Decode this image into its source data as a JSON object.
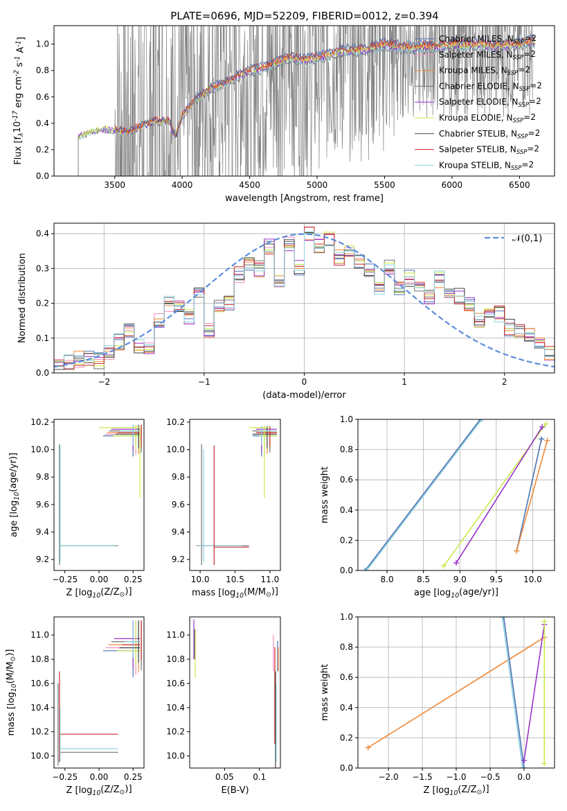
{
  "title": "PLATE=0696, MJD=52209, FIBERID=0012, z=0.394",
  "colors": {
    "Chabrier MILES": "#4c72b0",
    "Salpeter MILES": "#f08ec0",
    "Kroupa MILES": "#ee8a3a",
    "Chabrier ELODIE": "#707070",
    "Salpeter ELODIE": "#9a32c8",
    "Kroupa ELODIE": "#c8ea4a",
    "Chabrier STELIB": "#404040",
    "Salpeter STELIB": "#c8282a",
    "Kroupa STELIB": "#8ed0e0",
    "observed": "#808080",
    "normal_curve": "#5b8ddd"
  },
  "chart_data": [
    {
      "id": "spectrum",
      "type": "line",
      "xlabel": "wavelength [Angstrom, rest frame]",
      "ylabel": "Flux [f$_\\lambda$10$^{-17}$ erg cm$^{-2}$ s$^{-1}$ A$^{-1}$]",
      "xlim": [
        3050,
        6760
      ],
      "ylim": [
        0,
        1.14
      ],
      "xticks": [
        3500,
        4000,
        4500,
        5000,
        5500,
        6000,
        6500
      ],
      "yticks": [
        0.0,
        0.2,
        0.4,
        0.6,
        0.8,
        1.0
      ],
      "grid": false,
      "legend_position": "top-right",
      "legend": [
        {
          "label": "Chabrier MILES, N",
          "sub": "SSP",
          "suffix": "=2"
        },
        {
          "label": "Salpeter MILES, N",
          "sub": "SSP",
          "suffix": "=2"
        },
        {
          "label": "Kroupa MILES, N",
          "sub": "SSP",
          "suffix": "=2"
        },
        {
          "label": "Chabrier ELODIE, N",
          "sub": "SSP",
          "suffix": "=2"
        },
        {
          "label": "Salpeter ELODIE, N",
          "sub": "SSP",
          "suffix": "=2"
        },
        {
          "label": "Kroupa ELODIE, N",
          "sub": "SSP",
          "suffix": "=2"
        },
        {
          "label": "Chabrier STELIB, N",
          "sub": "SSP",
          "suffix": "=2"
        },
        {
          "label": "Salpeter STELIB, N",
          "sub": "SSP",
          "suffix": "=2"
        },
        {
          "label": "Kroupa STELIB, N",
          "sub": "SSP",
          "suffix": "=2"
        }
      ],
      "model_continuum": {
        "x": [
          3230,
          3300,
          3400,
          3500,
          3600,
          3700,
          3800,
          3900,
          3950,
          4000,
          4100,
          4200,
          4300,
          4400,
          4500,
          4600,
          4700,
          4800,
          4900,
          5000,
          5100,
          5200,
          5300,
          5400,
          5500,
          5600,
          5700,
          5800,
          5900,
          6000,
          6100,
          6200,
          6300,
          6400,
          6500,
          6600
        ],
        "y": [
          0.3,
          0.33,
          0.36,
          0.35,
          0.34,
          0.38,
          0.42,
          0.42,
          0.3,
          0.46,
          0.58,
          0.66,
          0.7,
          0.75,
          0.8,
          0.82,
          0.86,
          0.9,
          0.88,
          0.9,
          0.92,
          0.95,
          0.95,
          0.97,
          1.0,
          0.98,
          0.97,
          0.98,
          0.98,
          1.0,
          0.99,
          1.0,
          0.98,
          0.99,
          1.0,
          1.02
        ]
      },
      "noisy_range": [
        3500,
        6600
      ]
    },
    {
      "id": "residual-hist",
      "type": "line",
      "xlabel": "(data-model)/error",
      "ylabel": "Normed distribution",
      "xlim": [
        -2.5,
        2.5
      ],
      "ylim": [
        0,
        0.43
      ],
      "xticks": [
        -2,
        -1,
        0,
        1,
        2
      ],
      "yticks": [
        0.0,
        0.1,
        0.2,
        0.3,
        0.4
      ],
      "grid": true,
      "legend_position": "top-right",
      "legend": [
        "$\\mathcal{N}(0,1)$"
      ],
      "bin_edges": [
        -2.5,
        -2.4,
        -2.3,
        -2.2,
        -2.1,
        -2.0,
        -1.9,
        -1.8,
        -1.7,
        -1.6,
        -1.5,
        -1.4,
        -1.3,
        -1.2,
        -1.1,
        -1.0,
        -0.9,
        -0.8,
        -0.7,
        -0.6,
        -0.5,
        -0.4,
        -0.3,
        -0.2,
        -0.1,
        0.0,
        0.1,
        0.2,
        0.3,
        0.4,
        0.5,
        0.6,
        0.7,
        0.8,
        0.9,
        1.0,
        1.1,
        1.2,
        1.3,
        1.4,
        1.5,
        1.6,
        1.7,
        1.8,
        1.9,
        2.0,
        2.1,
        2.2,
        2.3,
        2.4,
        2.5
      ],
      "hist_base": [
        0.025,
        0.03,
        0.04,
        0.04,
        0.035,
        0.06,
        0.09,
        0.12,
        0.08,
        0.07,
        0.15,
        0.2,
        0.2,
        0.16,
        0.22,
        0.12,
        0.2,
        0.2,
        0.28,
        0.31,
        0.3,
        0.36,
        0.26,
        0.37,
        0.3,
        0.4,
        0.36,
        0.38,
        0.33,
        0.36,
        0.32,
        0.3,
        0.24,
        0.3,
        0.24,
        0.27,
        0.26,
        0.22,
        0.27,
        0.24,
        0.22,
        0.2,
        0.15,
        0.18,
        0.17,
        0.13,
        0.12,
        0.11,
        0.09,
        0.06
      ]
    },
    {
      "id": "age-vs-Z",
      "type": "scatter",
      "xlabel": "Z [log$_{10}$(Z/Z$_\\odot$)]",
      "ylabel": "age  [log$_{10}$(age/yr)]",
      "xlim": [
        -0.33,
        0.33
      ],
      "ylim": [
        9.12,
        10.22
      ],
      "xticks": [
        -0.25,
        0.0,
        0.25
      ],
      "yticks": [
        9.2,
        9.4,
        9.6,
        9.8,
        10.0,
        10.2
      ]
    },
    {
      "id": "age-vs-mass",
      "type": "scatter",
      "xlabel": "mass [log$_{10}$(M/M$_\\odot$)]",
      "ylabel": "",
      "xlim": [
        9.85,
        11.15
      ],
      "ylim": [
        9.12,
        10.22
      ],
      "xticks": [
        10.0,
        10.5,
        11.0
      ],
      "yticks": [
        9.2,
        9.4,
        9.6,
        9.8,
        10.0,
        10.2
      ]
    },
    {
      "id": "weight-vs-age",
      "type": "line",
      "xlabel": "age  [log$_{10}$(age/yr)]",
      "ylabel": "mass weight",
      "xlim": [
        7.6,
        10.3
      ],
      "ylim": [
        0,
        1.0
      ],
      "xticks": [
        8.0,
        8.5,
        9.0,
        9.5,
        10.0
      ],
      "yticks": [
        0.0,
        0.2,
        0.4,
        0.6,
        0.8,
        1.0
      ],
      "grid": true,
      "series": [
        {
          "key": "Chabrier MILES",
          "x": [
            7.7,
            9.28
          ],
          "y": [
            0.0,
            1.0
          ]
        },
        {
          "key": "Kroupa STELIB",
          "x": [
            7.72,
            9.3
          ],
          "y": [
            0.0,
            1.0
          ]
        },
        {
          "key": "Kroupa ELODIE",
          "x": [
            8.78,
            10.18
          ],
          "y": [
            0.03,
            0.97
          ]
        },
        {
          "key": "Salpeter ELODIE",
          "x": [
            8.95,
            10.13
          ],
          "y": [
            0.05,
            0.95
          ]
        },
        {
          "key": "Chabrier MILES",
          "x": [
            9.78,
            10.12
          ],
          "y": [
            0.13,
            0.87
          ]
        },
        {
          "key": "Kroupa MILES",
          "x": [
            9.78,
            10.2
          ],
          "y": [
            0.13,
            0.86
          ]
        }
      ]
    },
    {
      "id": "mass-vs-Z",
      "type": "scatter",
      "xlabel": "Z [log$_{10}$(Z/Z$_\\odot$)]",
      "ylabel": "mass [log$_{10}$(M/M$_\\odot$)]",
      "xlim": [
        -0.33,
        0.33
      ],
      "ylim": [
        9.9,
        11.15
      ],
      "xticks": [
        -0.25,
        0.0,
        0.25
      ],
      "yticks": [
        10.0,
        10.2,
        10.4,
        10.6,
        10.8,
        11.0
      ]
    },
    {
      "id": "mass-vs-ebv",
      "type": "scatter",
      "xlabel": "E(B-V)",
      "ylabel": "",
      "xlim": [
        0.0,
        0.13
      ],
      "ylim": [
        9.9,
        11.15
      ],
      "xticks": [
        0.05,
        0.1
      ],
      "yticks": [
        10.0,
        10.2,
        10.4,
        10.6,
        10.8,
        11.0
      ]
    },
    {
      "id": "weight-vs-Z",
      "type": "line",
      "xlabel": "Z [log$_{10}$(Z/Z$_\\odot$)]",
      "ylabel": "mass weight",
      "xlim": [
        -2.45,
        0.45
      ],
      "ylim": [
        0,
        1.0
      ],
      "xticks": [
        -2.0,
        -1.5,
        -1.0,
        -0.5,
        0.0
      ],
      "yticks": [
        0.0,
        0.2,
        0.4,
        0.6,
        0.8,
        1.0
      ],
      "grid": true,
      "series": [
        {
          "key": "Kroupa MILES",
          "x": [
            -2.3,
            0.3
          ],
          "y": [
            0.135,
            0.865
          ]
        },
        {
          "key": "Chabrier MILES",
          "x": [
            -0.3,
            0.0
          ],
          "y": [
            1.0,
            0.0
          ]
        },
        {
          "key": "Kroupa STELIB",
          "x": [
            -0.32,
            -0.02
          ],
          "y": [
            1.0,
            0.0
          ]
        },
        {
          "key": "Salpeter ELODIE",
          "x": [
            0.0,
            0.3
          ],
          "y": [
            0.05,
            0.95
          ]
        },
        {
          "key": "Kroupa ELODIE",
          "x": [
            0.3,
            0.3
          ],
          "y": [
            0.03,
            0.97
          ]
        }
      ]
    }
  ]
}
